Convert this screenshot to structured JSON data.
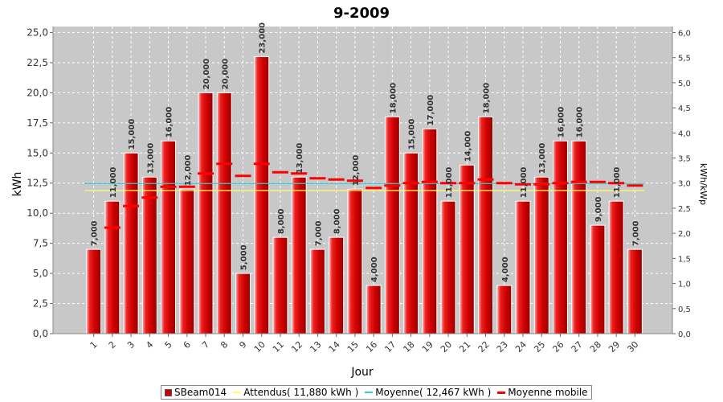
{
  "chart_data": {
    "type": "bar",
    "title": "9-2009",
    "xlabel": "Jour",
    "ylabel": "kWh",
    "ylabel_right": "kWh/kWp",
    "ylim": [
      0,
      25.5
    ],
    "ylim_right": [
      0,
      6.12
    ],
    "yticks": [
      "0,0",
      "2,5",
      "5,0",
      "7,5",
      "10,0",
      "12,5",
      "15,0",
      "17,5",
      "20,0",
      "22,5",
      "25,0"
    ],
    "yticks_right": [
      "0,0",
      "0,5",
      "1,0",
      "1,5",
      "2,0",
      "2,5",
      "3,0",
      "3,5",
      "4,0",
      "4,5",
      "5,0",
      "5,5",
      "6,0"
    ],
    "categories": [
      "1",
      "2",
      "3",
      "4",
      "5",
      "6",
      "7",
      "8",
      "9",
      "10",
      "11",
      "12",
      "13",
      "14",
      "15",
      "16",
      "17",
      "18",
      "19",
      "20",
      "21",
      "22",
      "23",
      "24",
      "25",
      "26",
      "27",
      "28",
      "29",
      "30"
    ],
    "series": [
      {
        "name": "SBeam014",
        "values": [
          7,
          11,
          15,
          13,
          16,
          12,
          20,
          20,
          5,
          23,
          8,
          13,
          7,
          8,
          12,
          4,
          18,
          15,
          17,
          11,
          14,
          18,
          4,
          11,
          13,
          16,
          16,
          9,
          11,
          7
        ],
        "labels": [
          "7,000",
          "11,000",
          "15,000",
          "13,000",
          "16,000",
          "12,000",
          "20,000",
          "20,000",
          "5,000",
          "23,000",
          "8,000",
          "13,000",
          "7,000",
          "8,000",
          "12,000",
          "4,000",
          "18,000",
          "15,000",
          "17,000",
          "11,000",
          "14,000",
          "18,000",
          "4,000",
          "11,000",
          "13,000",
          "16,000",
          "16,000",
          "9,000",
          "11,000",
          "7,000"
        ],
        "color": "#dd0000"
      },
      {
        "name": "Attendus( 11,880 kWh )",
        "value": 11.88,
        "color": "#ffff66"
      },
      {
        "name": "Moyenne( 12,467 kWh )",
        "value": 12.467,
        "color": "#33cccc"
      },
      {
        "name": "Moyenne mobile",
        "values": [
          null,
          8.8,
          10.6,
          11.3,
          12.2,
          12.2,
          13.3,
          14.1,
          13.1,
          14.1,
          13.4,
          13.3,
          12.9,
          12.8,
          12.7,
          12.1,
          12.3,
          12.5,
          12.6,
          12.5,
          12.5,
          12.8,
          12.5,
          12.4,
          12.4,
          12.5,
          12.6,
          12.6,
          12.5,
          12.3
        ],
        "color": "#ff0000"
      }
    ],
    "grid": true,
    "legend": "bottom"
  }
}
